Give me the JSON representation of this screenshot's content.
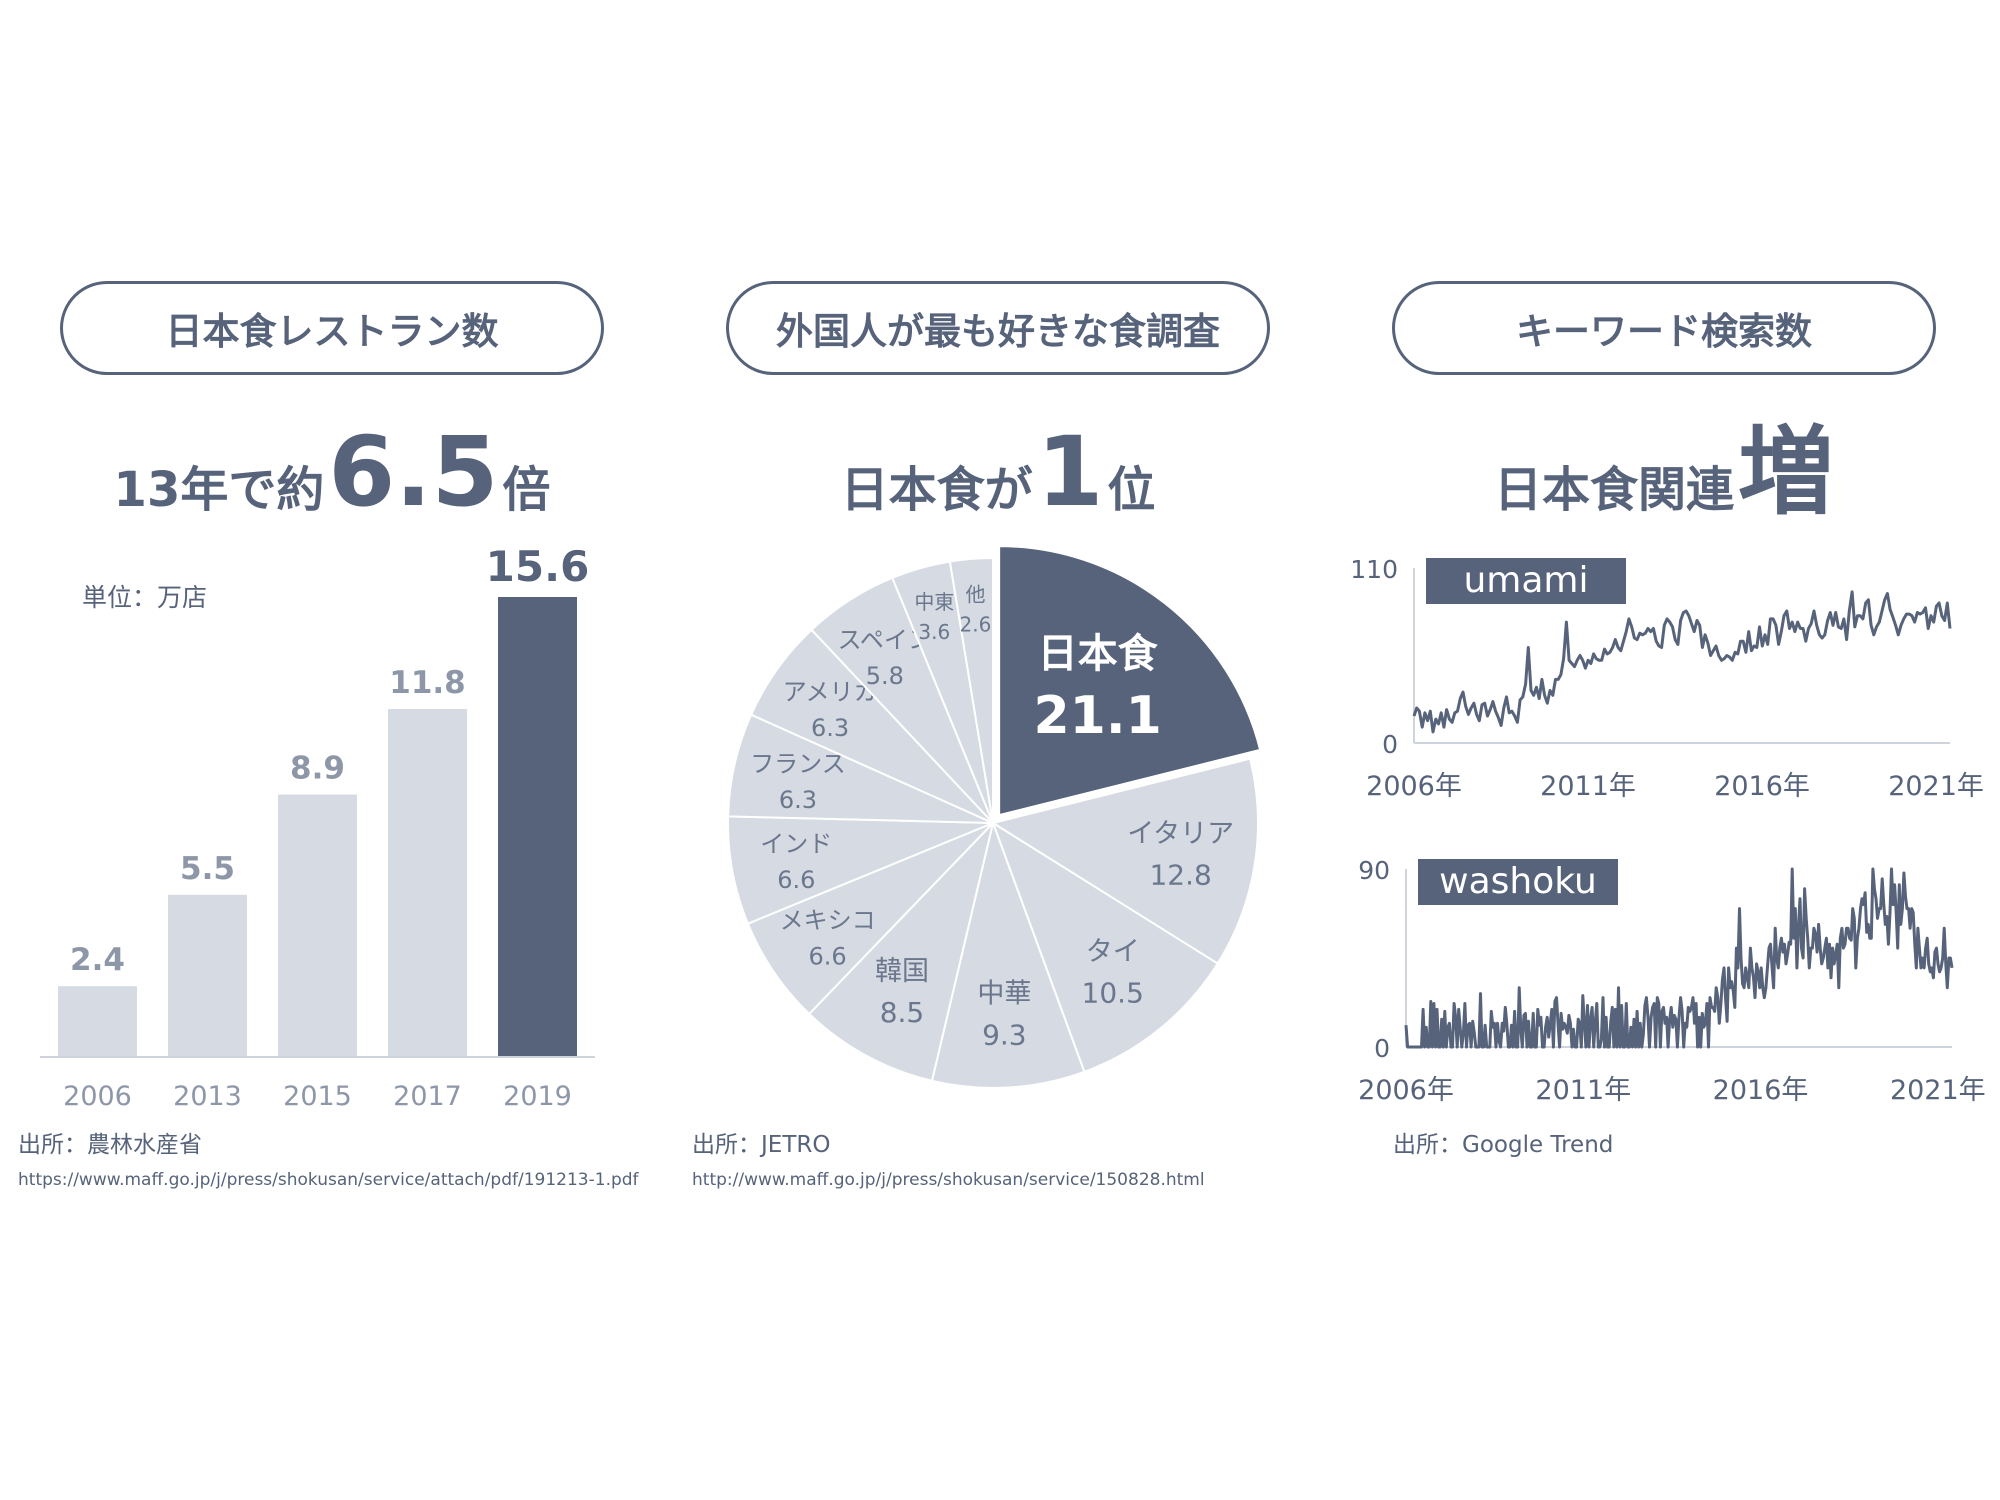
{
  "panels": [
    {
      "pill": "日本食レストラン数",
      "headline": {
        "pre": "13年で約",
        "big": "6.5",
        "post": "倍"
      },
      "source": "出所：農林水産省",
      "url": "https://www.maff.go.jp/j/press/shokusan/service/attach/pdf/191213-1.pdf"
    },
    {
      "pill": "外国人が最も好きな食調査",
      "headline": {
        "pre": "日本食が",
        "big": "1",
        "post": "位"
      },
      "source": "出所：JETRO",
      "url": "http://www.maff.go.jp/j/press/shokusan/service/150828.html"
    },
    {
      "pill": "キーワード検索数",
      "headline": {
        "pre": "日本食関連",
        "big": "増",
        "post": ""
      },
      "source": "出所：Google Trend",
      "url": ""
    }
  ],
  "colors": {
    "accent": "#56637a",
    "light": "#d5dae3",
    "axis": "#cfd4dc"
  },
  "chart_data": [
    {
      "type": "bar",
      "unit_label": "単位：万店",
      "categories": [
        "2006",
        "2013",
        "2015",
        "2017",
        "2019"
      ],
      "values": [
        2.4,
        5.5,
        8.9,
        11.8,
        15.6
      ],
      "value_labels": [
        "2.4",
        "5.5",
        "8.9",
        "11.8",
        "15.6"
      ],
      "highlight_index": 4,
      "ylim": [
        0,
        15.6
      ]
    },
    {
      "type": "pie",
      "slices": [
        {
          "name": "日本食",
          "value": 21.1,
          "label": "21.1",
          "highlight": true
        },
        {
          "name": "イタリア",
          "value": 12.8,
          "label": "12.8"
        },
        {
          "name": "タイ",
          "value": 10.5,
          "label": "10.5"
        },
        {
          "name": "中華",
          "value": 9.3,
          "label": "9.3"
        },
        {
          "name": "韓国",
          "value": 8.5,
          "label": "8.5"
        },
        {
          "name": "メキシコ",
          "value": 6.6,
          "label": "6.6"
        },
        {
          "name": "インド",
          "value": 6.6,
          "label": "6.6"
        },
        {
          "name": "フランス",
          "value": 6.3,
          "label": "6.3"
        },
        {
          "name": "アメリカ",
          "value": 6.3,
          "label": "6.3"
        },
        {
          "name": "スペイン",
          "value": 5.8,
          "label": "5.8"
        },
        {
          "name": "中東",
          "value": 3.6,
          "label": "3.6"
        },
        {
          "name": "他",
          "value": 2.6,
          "label": "2.6"
        }
      ]
    },
    {
      "type": "line",
      "name": "umami",
      "ylim": [
        0,
        110
      ],
      "yticks": [
        "0",
        "110"
      ],
      "xticks": [
        "2006年",
        "2011年",
        "2016年",
        "2021年"
      ],
      "x_start": 2006,
      "x_end": 2021.4,
      "values": [
        17,
        22,
        20,
        10,
        19,
        14,
        20,
        7,
        15,
        12,
        19,
        10,
        21,
        15,
        13,
        19,
        20,
        28,
        32,
        23,
        18,
        22,
        25,
        18,
        14,
        24,
        25,
        17,
        21,
        26,
        20,
        16,
        11,
        22,
        29,
        19,
        20,
        17,
        13,
        27,
        29,
        37,
        60,
        33,
        30,
        35,
        28,
        40,
        30,
        25,
        33,
        30,
        40,
        40,
        43,
        53,
        76,
        52,
        50,
        48,
        52,
        55,
        52,
        47,
        52,
        50,
        56,
        53,
        52,
        52,
        59,
        56,
        57,
        60,
        65,
        60,
        58,
        64,
        70,
        78,
        73,
        66,
        65,
        69,
        68,
        69,
        72,
        70,
        72,
        64,
        61,
        60,
        74,
        78,
        76,
        73,
        65,
        62,
        77,
        82,
        83,
        80,
        75,
        70,
        77,
        74,
        60,
        68,
        63,
        55,
        58,
        61,
        55,
        52,
        53,
        55,
        54,
        52,
        57,
        56,
        64,
        64,
        57,
        70,
        58,
        61,
        60,
        73,
        61,
        68,
        62,
        78,
        78,
        74,
        62,
        70,
        80,
        83,
        72,
        76,
        70,
        76,
        72,
        72,
        64,
        72,
        75,
        83,
        74,
        68,
        66,
        68,
        77,
        82,
        74,
        82,
        73,
        72,
        78,
        65,
        83,
        95,
        73,
        80,
        80,
        78,
        88,
        90,
        74,
        68,
        73,
        76,
        83,
        90,
        94,
        84,
        79,
        74,
        68,
        74,
        78,
        81,
        81,
        80,
        76,
        82,
        81,
        82,
        85,
        72,
        80,
        76,
        86,
        88,
        80,
        77,
        88,
        72
      ]
    },
    {
      "type": "line",
      "name": "washoku",
      "ylim": [
        0,
        90
      ],
      "yticks": [
        "0",
        "90"
      ],
      "xticks": [
        "2006年",
        "2011年",
        "2016年",
        "2021年"
      ],
      "x_start": 2006,
      "x_end": 2021.4,
      "values": [
        11,
        0,
        0,
        0,
        0,
        0,
        0,
        0,
        0,
        0,
        0,
        19,
        0,
        10,
        0,
        0,
        23,
        0,
        22,
        0,
        19,
        0,
        0,
        14,
        0,
        18,
        0,
        10,
        12,
        0,
        0,
        22,
        15,
        0,
        19,
        9,
        0,
        7,
        22,
        0,
        11,
        12,
        0,
        13,
        7,
        0,
        0,
        0,
        27,
        0,
        0,
        11,
        0,
        0,
        0,
        18,
        10,
        12,
        0,
        12,
        3,
        0,
        12,
        8,
        20,
        12,
        0,
        0,
        11,
        0,
        18,
        0,
        0,
        30,
        9,
        0,
        16,
        17,
        0,
        13,
        0,
        0,
        17,
        0,
        0,
        19,
        11,
        15,
        0,
        0,
        10,
        15,
        5,
        12,
        19,
        0,
        23,
        25,
        12,
        0,
        17,
        9,
        12,
        10,
        7,
        16,
        12,
        0,
        9,
        0,
        0,
        14,
        12,
        0,
        26,
        12,
        0,
        21,
        0,
        14,
        20,
        0,
        12,
        22,
        0,
        0,
        4,
        25,
        0,
        15,
        0,
        0,
        13,
        20,
        0,
        19,
        0,
        30,
        0,
        21,
        0,
        0,
        22,
        0,
        0,
        10,
        0,
        14,
        0,
        18,
        0,
        12,
        0,
        6,
        21,
        25,
        15,
        0,
        15,
        20,
        22,
        0,
        25,
        22,
        0,
        18,
        20,
        12,
        15,
        0,
        14,
        20,
        10,
        16,
        14,
        0,
        15,
        25,
        18,
        0,
        12,
        10,
        20,
        18,
        20,
        25,
        12,
        22,
        0,
        15,
        0,
        17,
        10,
        12,
        22,
        0,
        25,
        20,
        20,
        18,
        30,
        25,
        12,
        22,
        34,
        40,
        25,
        13,
        40,
        30,
        33,
        28,
        20,
        50,
        40,
        70,
        45,
        32,
        30,
        40,
        35,
        30,
        50,
        40,
        35,
        25,
        42,
        38,
        30,
        40,
        30,
        25,
        30,
        40,
        50,
        52,
        40,
        30,
        60,
        45,
        40,
        50,
        55,
        48,
        52,
        42,
        47,
        53,
        52,
        90,
        55,
        70,
        40,
        60,
        75,
        50,
        45,
        80,
        65,
        55,
        40,
        50,
        50,
        60,
        57,
        48,
        62,
        50,
        42,
        45,
        50,
        55,
        40,
        52,
        35,
        50,
        42,
        47,
        52,
        30,
        55,
        60,
        50,
        52,
        60,
        60,
        55,
        54,
        70,
        65,
        40,
        55,
        60,
        70,
        75,
        72,
        78,
        58,
        62,
        55,
        55,
        90,
        80,
        75,
        65,
        70,
        70,
        85,
        72,
        62,
        66,
        52,
        68,
        90,
        72,
        82,
        68,
        50,
        82,
        62,
        70,
        88,
        76,
        70,
        70,
        60,
        70,
        68,
        52,
        40,
        60,
        50,
        40,
        45,
        40,
        50,
        55,
        42,
        38,
        40,
        35,
        48,
        50,
        42,
        38,
        40,
        45,
        60,
        42,
        30,
        45,
        45,
        40
      ]
    }
  ]
}
